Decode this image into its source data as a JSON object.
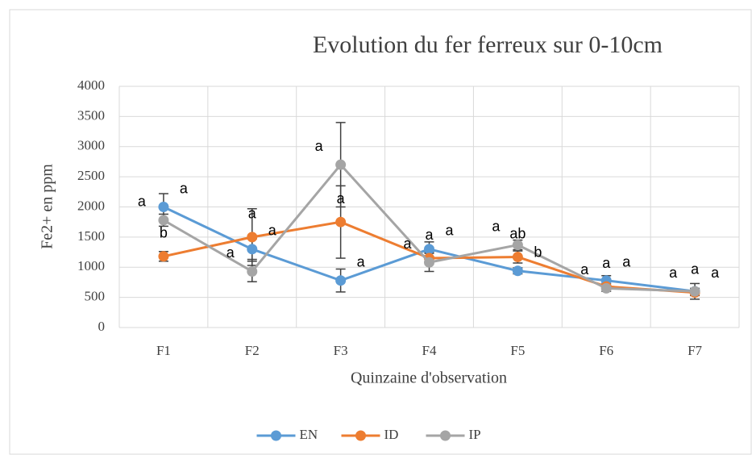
{
  "chart_data": {
    "type": "line",
    "title": "Evolution du fer ferreux sur 0-10cm",
    "x_label": "Quinzaine d'observation",
    "y_label": "Fe2+ en ppm",
    "categories": [
      "F1",
      "F2",
      "F3",
      "F4",
      "F5",
      "F6",
      "F7"
    ],
    "ylim": [
      0,
      4000
    ],
    "yticks": [
      0,
      500,
      1000,
      1500,
      2000,
      2500,
      3000,
      3500,
      4000
    ],
    "grid": true,
    "legend": "bottom",
    "series": [
      {
        "name": "EN",
        "color": "#5b9bd5",
        "values": [
          2000,
          1300,
          780,
          1300,
          940,
          780,
          600
        ],
        "errors": [
          220,
          170,
          190,
          120,
          50,
          80,
          50
        ],
        "letters": [
          "a",
          "a",
          "a",
          "a",
          "b",
          "a",
          "a"
        ]
      },
      {
        "name": "ID",
        "color": "#ed7d31",
        "values": [
          1180,
          1500,
          1750,
          1150,
          1170,
          680,
          580
        ],
        "errors": [
          80,
          470,
          600,
          100,
          100,
          50,
          50
        ],
        "letters": [
          "b",
          "a",
          "a",
          "a",
          "ab",
          "a",
          "a"
        ]
      },
      {
        "name": "IP",
        "color": "#a5a5a5",
        "values": [
          1780,
          930,
          2700,
          1080,
          1370,
          650,
          600
        ],
        "errors": [
          100,
          170,
          700,
          150,
          80,
          50,
          130
        ],
        "letters": [
          "a",
          "a",
          "a",
          "a",
          "a",
          "a",
          "a"
        ]
      }
    ]
  }
}
